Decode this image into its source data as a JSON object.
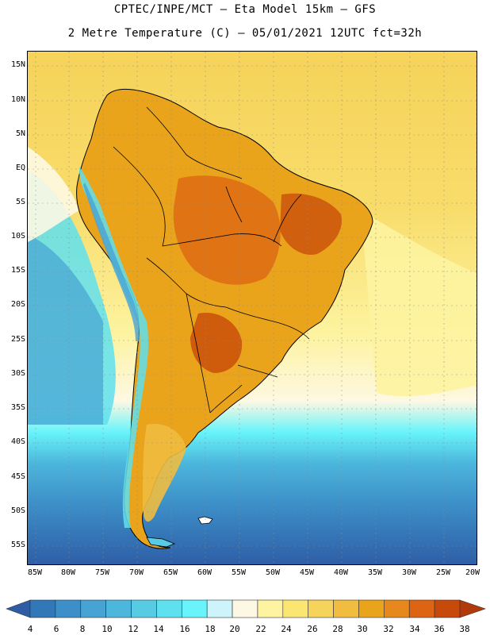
{
  "header": {
    "title_line1": "CPTEC/INPE/MCT –  Eta Model 15km – GFS",
    "title_line2": "2 Metre Temperature (C) – 05/01/2021 12UTC fct=32h"
  },
  "map": {
    "region": "South America",
    "variable": "2 Metre Temperature",
    "units": "C",
    "lat_labels": [
      "15N",
      "10N",
      "5N",
      "EQ",
      "5S",
      "10S",
      "15S",
      "20S",
      "25S",
      "30S",
      "35S",
      "40S",
      "45S",
      "50S",
      "55S"
    ],
    "lon_labels": [
      "85W",
      "80W",
      "75W",
      "70W",
      "65W",
      "60W",
      "55W",
      "50W",
      "45W",
      "40W",
      "35W",
      "30W",
      "25W",
      "20W"
    ]
  },
  "colorbar": {
    "labels": [
      "4",
      "6",
      "8",
      "10",
      "12",
      "14",
      "16",
      "18",
      "20",
      "22",
      "24",
      "26",
      "28",
      "30",
      "32",
      "34",
      "36",
      "38"
    ],
    "colors": [
      "#2e5da6",
      "#3277b8",
      "#3c8fc8",
      "#47a3d3",
      "#4cb6dc",
      "#57cbe4",
      "#5fe0ee",
      "#68f4fa",
      "#cdf3fb",
      "#fdf8e3",
      "#fdf3a0",
      "#fbe672",
      "#f6d35a",
      "#f0bd40",
      "#eaa41c",
      "#e6881c",
      "#dc6412",
      "#c84a0a",
      "#b23a0a"
    ]
  }
}
